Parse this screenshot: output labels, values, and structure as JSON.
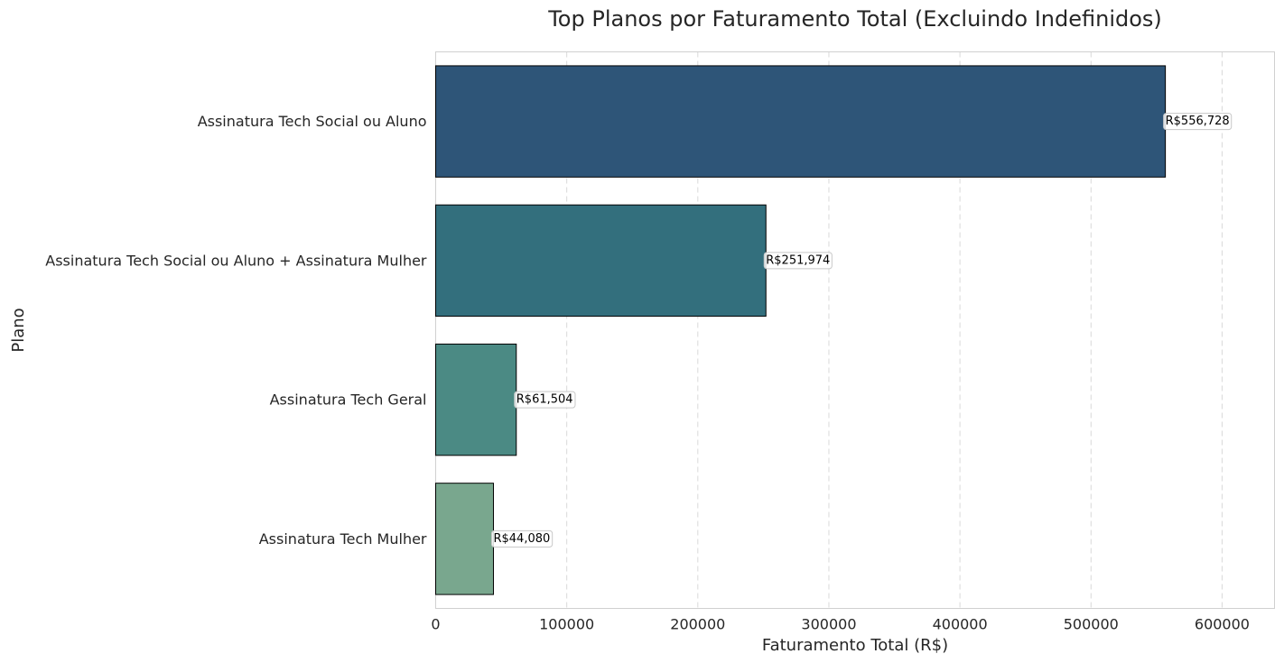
{
  "chart_data": {
    "type": "bar",
    "orientation": "horizontal",
    "title": "Top Planos por Faturamento Total (Excluindo Indefinidos)",
    "xlabel": "Faturamento Total (R$)",
    "ylabel": "Plano",
    "categories": [
      "Assinatura Tech Social ou Aluno",
      "Assinatura Tech Social ou Aluno + Assinatura Mulher",
      "Assinatura Tech Geral",
      "Assinatura Tech Mulher"
    ],
    "values": [
      556728,
      251974,
      61504,
      44080
    ],
    "data_labels": [
      "R$556,728",
      "R$251,974",
      "R$61,504",
      "R$44,080"
    ],
    "colors": [
      "#2e5578",
      "#336f7d",
      "#4b8a84",
      "#79a78e"
    ],
    "xlim": [
      0,
      640000
    ],
    "xticks": [
      0,
      100000,
      200000,
      300000,
      400000,
      500000,
      600000
    ],
    "xtick_labels": [
      "0",
      "100000",
      "200000",
      "300000",
      "400000",
      "500000",
      "600000"
    ],
    "grid": "x-dashed",
    "legend": "none"
  }
}
